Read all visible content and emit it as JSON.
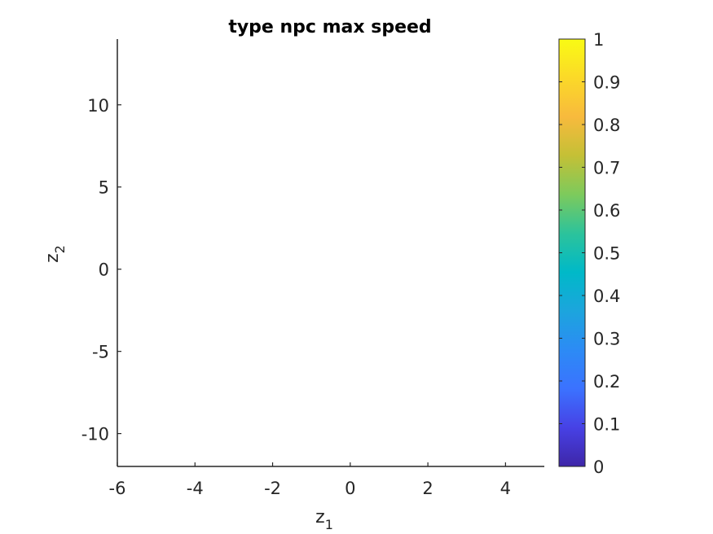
{
  "chart_data": {
    "type": "scatter",
    "title": "type npc max speed",
    "xlabel": {
      "base": "z",
      "sub": "1"
    },
    "ylabel": {
      "base": "z",
      "sub": "2"
    },
    "xlim": [
      -6,
      5
    ],
    "ylim": [
      -12,
      14
    ],
    "xticks": [
      -6,
      -4,
      -2,
      0,
      2,
      4
    ],
    "yticks": [
      -10,
      -5,
      0,
      5,
      10
    ],
    "grid": false,
    "points": [],
    "colorbar": {
      "min": 0,
      "max": 1,
      "ticks": [
        0,
        0.1,
        0.2,
        0.3,
        0.4,
        0.5,
        0.6,
        0.7,
        0.8,
        0.9,
        1
      ],
      "colormap": [
        "#3e26a8",
        "#4741e5",
        "#3b72ff",
        "#2c8bf5",
        "#1ca5dd",
        "#00b9c8",
        "#2cc39b",
        "#7dca5c",
        "#c4c036",
        "#f8ba3d",
        "#fbd928",
        "#f9fb14"
      ]
    }
  }
}
